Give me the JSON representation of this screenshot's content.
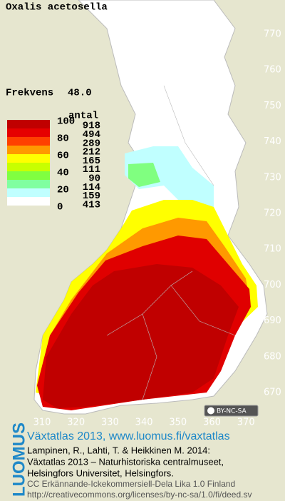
{
  "title": "Oxalis acetosella",
  "frequency": {
    "label": "Frekvens",
    "value": "48.0"
  },
  "legend": {
    "header": "antal",
    "scale_labels": [
      100,
      80,
      60,
      40,
      20,
      0
    ],
    "classes": [
      {
        "color": "#c00000",
        "count": 918
      },
      {
        "color": "#e60000",
        "count": 494
      },
      {
        "color": "#ff4000",
        "count": 289
      },
      {
        "color": "#ff9900",
        "count": 212
      },
      {
        "color": "#ffff00",
        "count": 165
      },
      {
        "color": "#c8ff00",
        "count": 111
      },
      {
        "color": "#80ff40",
        "count": 90
      },
      {
        "color": "#80ffa0",
        "count": 114
      },
      {
        "color": "#c0ffff",
        "count": 159
      },
      {
        "color": "#ffffff",
        "count": 413
      }
    ]
  },
  "northing_labels": [
    770,
    760,
    750,
    740,
    730,
    720,
    710,
    700,
    690,
    680,
    670
  ],
  "easting_labels": [
    310,
    320,
    330,
    340,
    350,
    360,
    370
  ],
  "license_badge": "BY-NC-SA",
  "footer": {
    "logo": "LUOMUS",
    "heading": "Växtatlas 2013, www.luomus.fi/vaxtatlas",
    "citation": [
      "Lampinen, R., Lahti, T. & Heikkinen M. 2014:",
      "Växtatlas 2013 – Naturhistoriska centralmuseet,",
      "Helsingfors Universitet, Helsingfors."
    ],
    "license": [
      "CC Erkännande-Ickekommersiell-Dela Lika 1.0 Finland",
      "http://creativecommons.org/licenses/by-nc-sa/1.0/fi/deed.sv"
    ]
  }
}
